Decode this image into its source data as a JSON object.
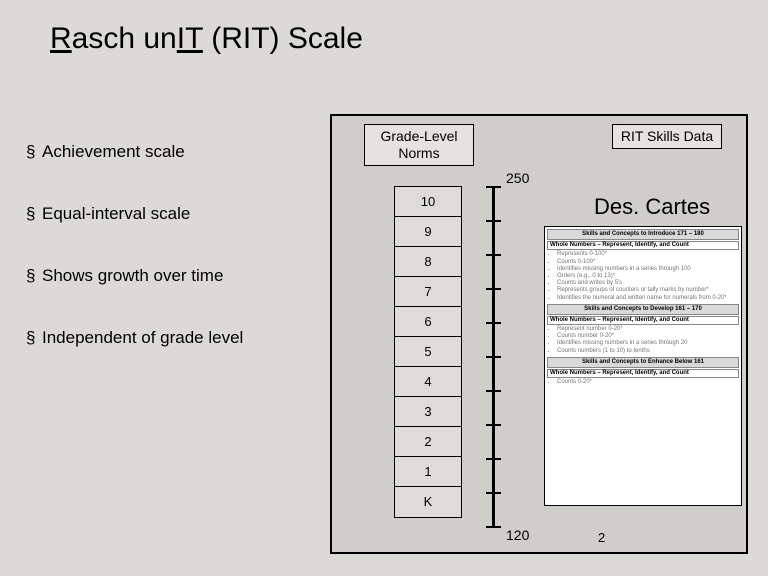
{
  "title": {
    "parts": [
      "R",
      "asch un",
      "IT",
      " (RIT) Scale"
    ]
  },
  "bullets": [
    "Achievement scale",
    "Equal-interval scale",
    "Shows growth over time",
    "Independent of grade level"
  ],
  "diagram": {
    "gradeNormsLabel": "Grade-Level Norms",
    "ritSkillsLabel": "RIT Skills Data",
    "descartes": "Des. Cartes",
    "scaleTop": "250",
    "scaleBottom": "120",
    "pageNum": "2",
    "tickCount": 11,
    "gradeLevels": [
      "10",
      "9",
      "8",
      "7",
      "6",
      "5",
      "4",
      "3",
      "2",
      "1",
      "K"
    ],
    "skillsPanel": {
      "sections": [
        {
          "header": "Skills and Concepts to Introduce 171 – 180",
          "sub": "Whole Numbers – Represent, Identify, and Count",
          "items": [
            "Represents 0-100*",
            "Counts 0-100*",
            "Identifies missing numbers in a series through 100",
            "Orders (e.g., 0 to 13)*",
            "Counts and writes by 5's",
            "Represents groups of counters or tally marks by number*",
            "Identifies the numeral and written name for numerals from 0-20*"
          ]
        },
        {
          "header": "Skills and Concepts to Develop 161 – 170",
          "sub": "Whole Numbers – Represent, Identify, and Count",
          "items": [
            "Represent number 0-20*",
            "Counts number 0-20*",
            "Identifies missing numbers in a series through 20",
            "Counts numbers (1 to 10) to tenths"
          ]
        },
        {
          "header": "Skills and Concepts to Enhance Below 161",
          "sub": "Whole Numbers – Represent, Identify, and Count",
          "items": [
            "Counts 0-20*"
          ]
        }
      ]
    },
    "colors": {
      "panelBg": "#ffffff",
      "cellBg": "#dedcd6",
      "boxBg": "#e6e3de",
      "border": "#000000"
    }
  }
}
